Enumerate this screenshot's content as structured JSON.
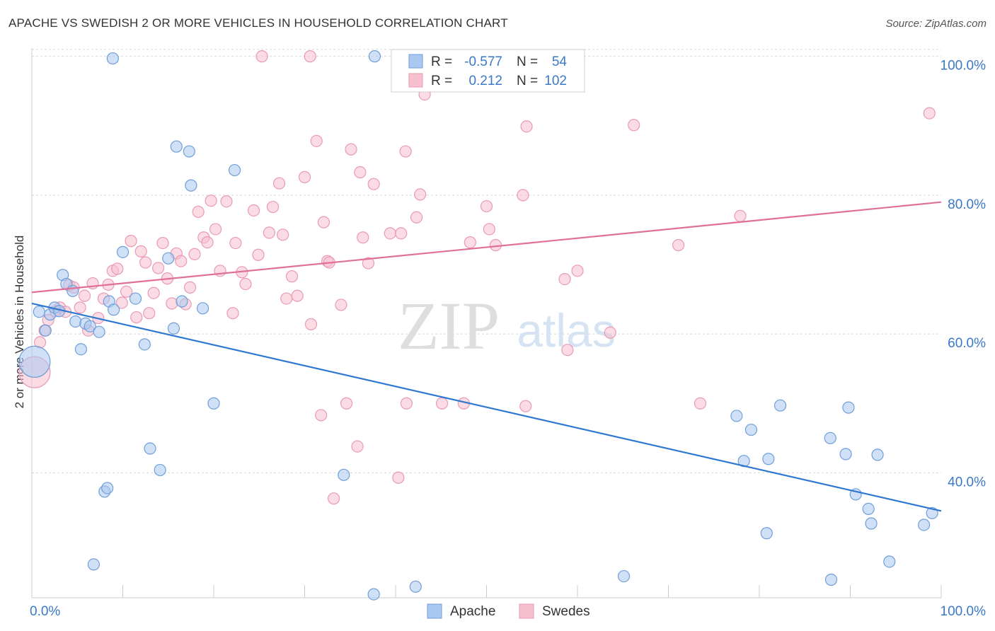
{
  "title": "APACHE VS SWEDISH 2 OR MORE VEHICLES IN HOUSEHOLD CORRELATION CHART",
  "source": "Source: ZipAtlas.com",
  "watermark": {
    "zip": "ZIP",
    "atlas": "atlas"
  },
  "legend_box": {
    "rows": [
      {
        "r_label": "R =",
        "r_value": "-0.577",
        "n_label": "N =",
        "n_value": "54"
      },
      {
        "r_label": "R =",
        "r_value": "0.212",
        "n_label": "N =",
        "n_value": "102"
      }
    ]
  },
  "bottom_legend": [
    "Apache",
    "Swedes"
  ],
  "colors": {
    "apache_fill": "#a9c8f0",
    "apache_stroke": "#6f9fd8",
    "apache_line": "#2f78d0",
    "swedes_fill": "#f7c0d0",
    "swedes_stroke": "#e99ab4",
    "swedes_line": "#e07098",
    "tick_text": "#3a78c8",
    "grid": "#d8d8d8"
  },
  "chart_data": {
    "type": "scatter",
    "title": "APACHE VS SWEDISH 2 OR MORE VEHICLES IN HOUSEHOLD CORRELATION CHART",
    "xlabel": "",
    "ylabel": "2 or more Vehicles in Household",
    "xlim": [
      0,
      100
    ],
    "ylim": [
      22,
      102
    ],
    "x_tick_labels": [
      "0.0%",
      "100.0%"
    ],
    "y_ticks": [
      40,
      60,
      80,
      100
    ],
    "y_tick_labels": [
      "40.0%",
      "60.0%",
      "80.0%",
      "100.0%"
    ],
    "grid": true,
    "legend_position": "bottom",
    "series": [
      {
        "name": "Apache",
        "r": -0.577,
        "n": 54,
        "trend": {
          "x": [
            0,
            100
          ],
          "y": [
            64.4,
            34.5
          ]
        },
        "points": [
          {
            "x": 0.3,
            "y": 56,
            "big": true
          },
          {
            "x": 0.8,
            "y": 63.2
          },
          {
            "x": 1.5,
            "y": 60.5
          },
          {
            "x": 2.0,
            "y": 62.8
          },
          {
            "x": 2.5,
            "y": 63.8
          },
          {
            "x": 3.0,
            "y": 63.3
          },
          {
            "x": 3.4,
            "y": 68.5
          },
          {
            "x": 3.8,
            "y": 67.2
          },
          {
            "x": 4.5,
            "y": 66.2
          },
          {
            "x": 4.8,
            "y": 61.8
          },
          {
            "x": 5.4,
            "y": 57.8
          },
          {
            "x": 5.9,
            "y": 61.5
          },
          {
            "x": 6.4,
            "y": 61.1
          },
          {
            "x": 7.4,
            "y": 60.3
          },
          {
            "x": 8.5,
            "y": 64.7
          },
          {
            "x": 9.0,
            "y": 63.5
          },
          {
            "x": 8.0,
            "y": 37.3
          },
          {
            "x": 8.3,
            "y": 37.8
          },
          {
            "x": 6.8,
            "y": 26.8
          },
          {
            "x": 8.9,
            "y": 99.7
          },
          {
            "x": 10.0,
            "y": 71.8
          },
          {
            "x": 11.4,
            "y": 65.1
          },
          {
            "x": 12.4,
            "y": 58.5
          },
          {
            "x": 13.0,
            "y": 43.5
          },
          {
            "x": 14.1,
            "y": 40.4
          },
          {
            "x": 15.0,
            "y": 70.9
          },
          {
            "x": 15.6,
            "y": 60.8
          },
          {
            "x": 15.9,
            "y": 87.0
          },
          {
            "x": 16.5,
            "y": 64.7
          },
          {
            "x": 17.3,
            "y": 86.3
          },
          {
            "x": 17.5,
            "y": 81.4
          },
          {
            "x": 18.8,
            "y": 63.7
          },
          {
            "x": 20.0,
            "y": 50.0
          },
          {
            "x": 22.3,
            "y": 83.6
          },
          {
            "x": 34.3,
            "y": 39.7
          },
          {
            "x": 37.7,
            "y": 100.0
          },
          {
            "x": 37.6,
            "y": 22.5
          },
          {
            "x": 42.2,
            "y": 23.6
          },
          {
            "x": 65.1,
            "y": 25.1
          },
          {
            "x": 77.5,
            "y": 48.2
          },
          {
            "x": 78.3,
            "y": 41.7
          },
          {
            "x": 79.1,
            "y": 46.2
          },
          {
            "x": 80.8,
            "y": 31.3
          },
          {
            "x": 81.0,
            "y": 42.0
          },
          {
            "x": 82.3,
            "y": 49.7
          },
          {
            "x": 87.8,
            "y": 45.0
          },
          {
            "x": 87.9,
            "y": 24.6
          },
          {
            "x": 89.5,
            "y": 42.7
          },
          {
            "x": 89.8,
            "y": 49.4
          },
          {
            "x": 90.6,
            "y": 36.9
          },
          {
            "x": 92.0,
            "y": 34.8
          },
          {
            "x": 92.3,
            "y": 32.7
          },
          {
            "x": 93.0,
            "y": 42.6
          },
          {
            "x": 94.3,
            "y": 27.2
          },
          {
            "x": 98.1,
            "y": 32.5
          },
          {
            "x": 99.0,
            "y": 34.2
          }
        ]
      },
      {
        "name": "Swedes",
        "r": 0.212,
        "n": 102,
        "trend": {
          "x": [
            0,
            100
          ],
          "y": [
            66.0,
            79.0
          ]
        },
        "points": [
          {
            "x": 0.3,
            "y": 54.5,
            "big": true
          },
          {
            "x": 0.9,
            "y": 58.8
          },
          {
            "x": 1.4,
            "y": 60.5
          },
          {
            "x": 1.8,
            "y": 62.0
          },
          {
            "x": 2.6,
            "y": 63.3
          },
          {
            "x": 3.1,
            "y": 63.8
          },
          {
            "x": 3.7,
            "y": 63.2
          },
          {
            "x": 4.1,
            "y": 67.0
          },
          {
            "x": 4.6,
            "y": 66.7
          },
          {
            "x": 5.3,
            "y": 63.8
          },
          {
            "x": 5.8,
            "y": 65.5
          },
          {
            "x": 6.2,
            "y": 60.5
          },
          {
            "x": 6.7,
            "y": 67.3
          },
          {
            "x": 7.3,
            "y": 62.3
          },
          {
            "x": 7.9,
            "y": 65.1
          },
          {
            "x": 8.4,
            "y": 67.1
          },
          {
            "x": 8.9,
            "y": 69.1
          },
          {
            "x": 9.4,
            "y": 69.4
          },
          {
            "x": 9.9,
            "y": 64.5
          },
          {
            "x": 10.4,
            "y": 66.1
          },
          {
            "x": 10.9,
            "y": 73.4
          },
          {
            "x": 11.5,
            "y": 62.4
          },
          {
            "x": 12.0,
            "y": 71.9
          },
          {
            "x": 12.5,
            "y": 70.3
          },
          {
            "x": 12.9,
            "y": 63.0
          },
          {
            "x": 13.4,
            "y": 65.9
          },
          {
            "x": 13.9,
            "y": 69.5
          },
          {
            "x": 14.4,
            "y": 73.1
          },
          {
            "x": 14.9,
            "y": 68.0
          },
          {
            "x": 15.4,
            "y": 64.4
          },
          {
            "x": 15.9,
            "y": 71.6
          },
          {
            "x": 16.4,
            "y": 70.5
          },
          {
            "x": 16.9,
            "y": 64.3
          },
          {
            "x": 17.4,
            "y": 66.7
          },
          {
            "x": 17.9,
            "y": 71.5
          },
          {
            "x": 18.3,
            "y": 77.6
          },
          {
            "x": 18.9,
            "y": 73.9
          },
          {
            "x": 19.3,
            "y": 73.2
          },
          {
            "x": 19.7,
            "y": 79.2
          },
          {
            "x": 20.2,
            "y": 75.1
          },
          {
            "x": 20.7,
            "y": 69.1
          },
          {
            "x": 21.4,
            "y": 79.1
          },
          {
            "x": 22.1,
            "y": 63.0
          },
          {
            "x": 22.4,
            "y": 73.1
          },
          {
            "x": 23.1,
            "y": 68.9
          },
          {
            "x": 23.5,
            "y": 67.2
          },
          {
            "x": 24.4,
            "y": 77.8
          },
          {
            "x": 24.9,
            "y": 71.4
          },
          {
            "x": 25.3,
            "y": 100.0
          },
          {
            "x": 26.1,
            "y": 74.6
          },
          {
            "x": 26.5,
            "y": 78.3
          },
          {
            "x": 27.2,
            "y": 81.7
          },
          {
            "x": 27.6,
            "y": 74.3
          },
          {
            "x": 28.0,
            "y": 65.1
          },
          {
            "x": 28.6,
            "y": 68.3
          },
          {
            "x": 29.2,
            "y": 65.5
          },
          {
            "x": 30.0,
            "y": 82.6
          },
          {
            "x": 30.6,
            "y": 100.0
          },
          {
            "x": 30.7,
            "y": 61.4
          },
          {
            "x": 31.3,
            "y": 87.8
          },
          {
            "x": 31.8,
            "y": 48.3
          },
          {
            "x": 32.1,
            "y": 76.1
          },
          {
            "x": 32.5,
            "y": 70.5
          },
          {
            "x": 32.7,
            "y": 70.3
          },
          {
            "x": 33.2,
            "y": 36.3
          },
          {
            "x": 34.0,
            "y": 64.2
          },
          {
            "x": 34.6,
            "y": 50.0
          },
          {
            "x": 35.1,
            "y": 86.6
          },
          {
            "x": 35.8,
            "y": 43.8
          },
          {
            "x": 36.1,
            "y": 83.3
          },
          {
            "x": 36.4,
            "y": 73.9
          },
          {
            "x": 37.0,
            "y": 70.2
          },
          {
            "x": 37.6,
            "y": 81.6
          },
          {
            "x": 39.4,
            "y": 74.5
          },
          {
            "x": 40.3,
            "y": 39.3
          },
          {
            "x": 40.6,
            "y": 74.5
          },
          {
            "x": 41.1,
            "y": 86.3
          },
          {
            "x": 41.2,
            "y": 50.0
          },
          {
            "x": 42.3,
            "y": 76.8
          },
          {
            "x": 42.7,
            "y": 80.1
          },
          {
            "x": 43.2,
            "y": 94.5
          },
          {
            "x": 45.1,
            "y": 50.0
          },
          {
            "x": 47.5,
            "y": 50.0
          },
          {
            "x": 48.2,
            "y": 73.2
          },
          {
            "x": 50.0,
            "y": 78.4
          },
          {
            "x": 50.3,
            "y": 75.1
          },
          {
            "x": 51.0,
            "y": 72.8
          },
          {
            "x": 54.0,
            "y": 80.0
          },
          {
            "x": 54.4,
            "y": 89.9
          },
          {
            "x": 54.3,
            "y": 49.6
          },
          {
            "x": 58.6,
            "y": 67.9
          },
          {
            "x": 58.9,
            "y": 57.7
          },
          {
            "x": 60.0,
            "y": 69.1
          },
          {
            "x": 63.6,
            "y": 60.2
          },
          {
            "x": 66.2,
            "y": 90.1
          },
          {
            "x": 71.1,
            "y": 72.8
          },
          {
            "x": 73.5,
            "y": 50.0
          },
          {
            "x": 77.9,
            "y": 77.0
          },
          {
            "x": 98.7,
            "y": 91.8
          },
          {
            "x": 56.0,
            "y": 100.0
          }
        ]
      }
    ]
  }
}
